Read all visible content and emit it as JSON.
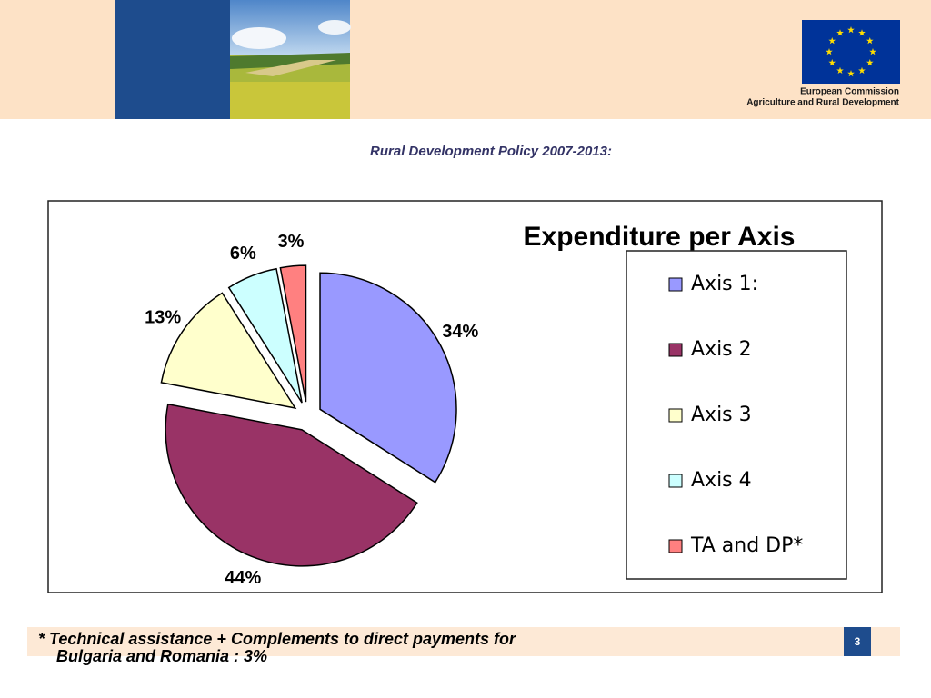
{
  "header": {
    "org": "European Commission",
    "dept": "Agriculture and Rural Development"
  },
  "slide_title": "Rural Development Policy 2007-2013:",
  "chart_data": {
    "type": "pie",
    "title": "Expenditure per Axis",
    "categories": [
      "Axis 1:",
      "Axis 2",
      "Axis 3",
      "Axis 4",
      "TA and DP*"
    ],
    "values": [
      34,
      44,
      13,
      6,
      3
    ],
    "value_labels": [
      "34%",
      "44%",
      "13%",
      "6%",
      "3%"
    ],
    "colors": [
      "#9999ff",
      "#993366",
      "#ffffcc",
      "#ccffff",
      "#ff8080"
    ],
    "legend": "right"
  },
  "footnote": [
    "* Technical assistance + Complements to direct payments for",
    "Bulgaria and Romania : 3%"
  ],
  "page_number": "3"
}
